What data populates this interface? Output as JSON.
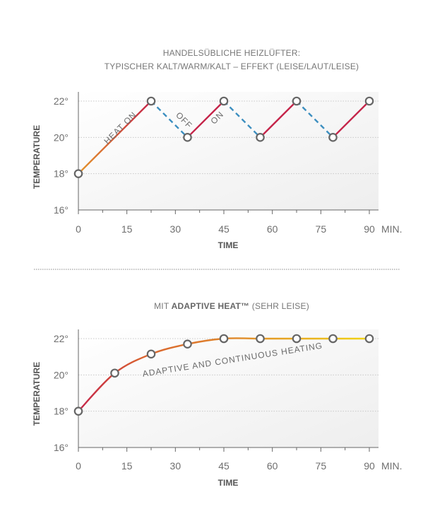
{
  "colors": {
    "red": "#c5254a",
    "orange": "#de8a2a",
    "yellow": "#f0cf16",
    "blue_dashed": "#3d8fc0",
    "marker_stroke": "#666666",
    "text": "#6e6e6e"
  },
  "chart_data": [
    {
      "type": "line",
      "title_lines": [
        "HANDELSÜBLICHE HEIZLÜFTER:",
        "TYPISCHER KALT/WARM/KALT – EFFEKT (LEISE/LAUT/LEISE)"
      ],
      "xlabel": "TIME",
      "ylabel": "TEMPERATURE",
      "x_unit": "MIN.",
      "xlim": [
        0,
        90
      ],
      "ylim": [
        16,
        22
      ],
      "x_ticks": [
        0,
        15,
        30,
        45,
        60,
        75,
        90
      ],
      "x_tick_labels": [
        "0",
        "15",
        "30",
        "45",
        "60",
        "75",
        "90"
      ],
      "y_ticks": [
        16,
        18,
        20,
        22
      ],
      "y_tick_labels": [
        "16°",
        "18°",
        "20°",
        "22°"
      ],
      "grid": true,
      "points": [
        {
          "x": 0,
          "y": 18
        },
        {
          "x": 22.5,
          "y": 22
        },
        {
          "x": 33.75,
          "y": 20
        },
        {
          "x": 45,
          "y": 22
        },
        {
          "x": 56.25,
          "y": 20
        },
        {
          "x": 67.5,
          "y": 22
        },
        {
          "x": 78.75,
          "y": 20
        },
        {
          "x": 90,
          "y": 22
        }
      ],
      "segment_states": [
        "on",
        "off",
        "on",
        "off",
        "on",
        "off",
        "on"
      ],
      "annotations": [
        {
          "text": "HEAT ON",
          "x": 9,
          "y": 19.6
        },
        {
          "text": "OFF",
          "x": 30,
          "y": 21.2
        },
        {
          "text": "ON",
          "x": 42,
          "y": 20.7
        }
      ]
    },
    {
      "type": "line",
      "title_parts": [
        "MIT ",
        "ADAPTIVE HEAT™",
        " (SEHR LEISE)"
      ],
      "xlabel": "TIME",
      "ylabel": "TEMPERATURE",
      "x_unit": "MIN.",
      "xlim": [
        0,
        90
      ],
      "ylim": [
        16,
        22
      ],
      "x_ticks": [
        0,
        15,
        30,
        45,
        60,
        75,
        90
      ],
      "x_tick_labels": [
        "0",
        "15",
        "30",
        "45",
        "60",
        "75",
        "90"
      ],
      "y_ticks": [
        16,
        18,
        20,
        22
      ],
      "y_tick_labels": [
        "16°",
        "18°",
        "20°",
        "22°"
      ],
      "grid": true,
      "points": [
        {
          "x": 0,
          "y": 18
        },
        {
          "x": 11.25,
          "y": 20.1
        },
        {
          "x": 22.5,
          "y": 21.15
        },
        {
          "x": 33.75,
          "y": 21.7
        },
        {
          "x": 45,
          "y": 22
        },
        {
          "x": 56.25,
          "y": 22
        },
        {
          "x": 67.5,
          "y": 22
        },
        {
          "x": 78.75,
          "y": 22
        },
        {
          "x": 90,
          "y": 22
        }
      ],
      "annotations": [
        {
          "text": "ADAPTIVE AND CONTINUOUS HEATING",
          "x": 20,
          "y": 19.9
        }
      ]
    }
  ]
}
